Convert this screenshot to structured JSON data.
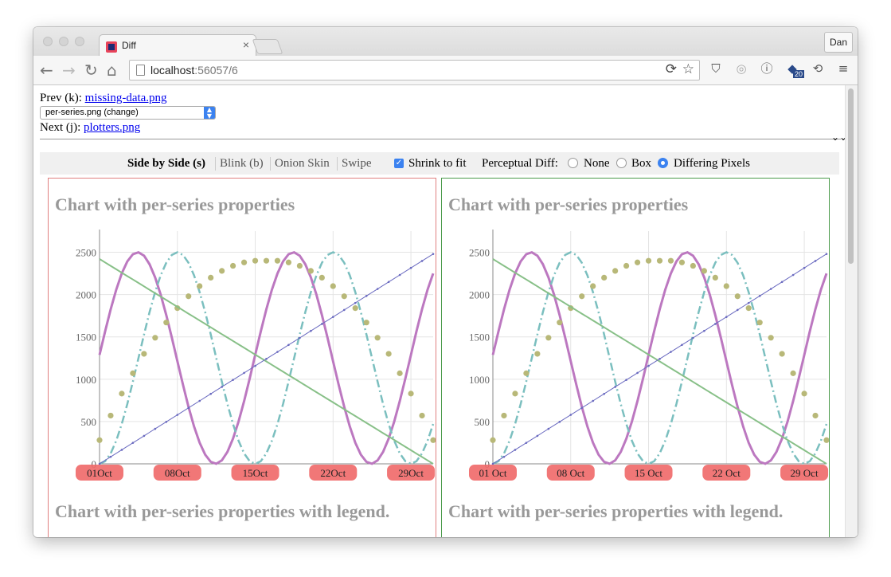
{
  "browser": {
    "tab_title": "Diff",
    "tab_close": "×",
    "user_label": "Dan",
    "url_host": "localhost",
    "url_rest": ":56057/6",
    "ext_badge": "20",
    "icons": [
      "back-icon",
      "forward-icon",
      "reload-icon",
      "home-icon",
      "page-icon",
      "sync-icon",
      "bookmark-star-icon",
      "pocket-icon",
      "extension-icon",
      "info-icon",
      "puzzle-icon",
      "refresh-icon",
      "menu-icon"
    ]
  },
  "nav": {
    "prev_label": "Prev (k): ",
    "prev_link": "missing-data.png",
    "select_value": "per-series.png (change)",
    "next_label": "Next (j): ",
    "next_link": "plotters.png"
  },
  "modes": {
    "side_by_side": "Side by Side (s)",
    "blink": "Blink (b)",
    "onion": "Onion Skin",
    "swipe": "Swipe",
    "shrink_label": "Shrink to fit",
    "shrink_checked": true,
    "perceptual_label": "Perceptual Diff:",
    "opt_none": "None",
    "opt_box": "Box",
    "opt_pixels": "Differing Pixels",
    "selected": "Differing Pixels"
  },
  "panels": {
    "left": {
      "title1": "Chart with per-series properties",
      "title2": "Chart with per-series properties with legend.",
      "xticks": [
        "01Oct",
        "08Oct",
        "15Oct",
        "22Oct",
        "29Oct"
      ]
    },
    "right": {
      "title1": "Chart with per-series properties",
      "title2": "Chart with per-series properties with legend.",
      "xticks": [
        "01 Oct",
        "08 Oct",
        "15 Oct",
        "22 Oct",
        "29 Oct"
      ]
    }
  },
  "chart_data": {
    "type": "line",
    "yticks": [
      0,
      500,
      1000,
      1500,
      2000,
      2500
    ],
    "ylim": [
      0,
      2750
    ],
    "xdays": 30,
    "highlight_color": "#f06868",
    "series": [
      {
        "style": "solid",
        "color": "#bc78c0",
        "kind": "sine",
        "amp": 1250,
        "offset": 1250,
        "period": 14,
        "phase": 0.03
      },
      {
        "style": "dashdot",
        "color": "#7bbfbf",
        "kind": "cos",
        "amp": 1250,
        "offset": 1250,
        "period": 14,
        "phase": 0.5
      },
      {
        "style": "points",
        "color": "#b8b878",
        "kind": "arch",
        "values": [
          280,
          570,
          830,
          1070,
          1300,
          1490,
          1670,
          1840,
          1980,
          2100,
          2200,
          2280,
          2340,
          2380,
          2400,
          2400,
          2400,
          2380,
          2340,
          2280,
          2200,
          2100,
          1980,
          1840,
          1670,
          1490,
          1300,
          1070,
          830,
          570,
          280
        ]
      },
      {
        "style": "solid",
        "color": "#88c088",
        "kind": "line",
        "from": 2420,
        "to": 0
      },
      {
        "style": "dotted-line",
        "color": "#6a6ac0",
        "kind": "line",
        "from": 0,
        "to": 2480
      }
    ]
  }
}
